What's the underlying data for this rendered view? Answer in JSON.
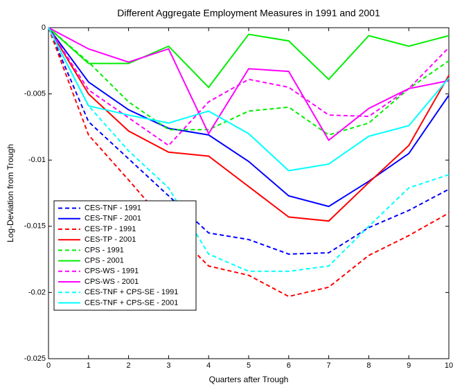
{
  "chart_data": {
    "type": "line",
    "title": "Different Aggregate Employment Measures in 1991 and 2001",
    "x_label": "Quarters after Trough",
    "y_label": "Log-Deviation from Trough",
    "x": [
      0,
      1,
      2,
      3,
      4,
      5,
      6,
      7,
      8,
      9,
      10
    ],
    "xlim": [
      0,
      10
    ],
    "xticks": [
      0,
      1,
      2,
      3,
      4,
      5,
      6,
      7,
      8,
      9,
      10
    ],
    "ylim": [
      -0.025,
      0
    ],
    "yticks": [
      0,
      -0.005,
      -0.01,
      -0.015,
      -0.02,
      -0.025
    ],
    "grid": false,
    "legend": "lower left",
    "series": [
      {
        "name": "CES-TNF - 1991",
        "color": "#0000ff",
        "dashed": true,
        "values": [
          0,
          -0.0071,
          -0.0099,
          -0.0127,
          -0.0155,
          -0.016,
          -0.0171,
          -0.017,
          -0.0151,
          -0.0138,
          -0.0122
        ]
      },
      {
        "name": "CES-TNF - 2001",
        "color": "#0000ff",
        "dashed": false,
        "values": [
          0,
          -0.0041,
          -0.0062,
          -0.0076,
          -0.0081,
          -0.0101,
          -0.0127,
          -0.0135,
          -0.0116,
          -0.0095,
          -0.0051
        ]
      },
      {
        "name": "CES-TP - 1991",
        "color": "#ff0000",
        "dashed": true,
        "values": [
          0,
          -0.0081,
          -0.0115,
          -0.015,
          -0.018,
          -0.0187,
          -0.0203,
          -0.0196,
          -0.0172,
          -0.0157,
          -0.014
        ]
      },
      {
        "name": "CES-TP - 2001",
        "color": "#ff0000",
        "dashed": false,
        "values": [
          0,
          -0.005,
          -0.0078,
          -0.0094,
          -0.0097,
          -0.012,
          -0.0143,
          -0.0146,
          -0.0117,
          -0.0089,
          -0.0036
        ]
      },
      {
        "name": "CPS - 1991",
        "color": "#00ee00",
        "dashed": true,
        "values": [
          0,
          -0.0026,
          -0.0056,
          -0.0077,
          -0.0077,
          -0.0063,
          -0.006,
          -0.0081,
          -0.0072,
          -0.0046,
          -0.0025
        ]
      },
      {
        "name": "CPS - 2001",
        "color": "#00ee00",
        "dashed": false,
        "values": [
          0,
          -0.0027,
          -0.0027,
          -0.0014,
          -0.0045,
          -0.0005,
          -0.001,
          -0.0039,
          -0.0006,
          -0.0014,
          -0.0006
        ]
      },
      {
        "name": "CPS-WS - 1991",
        "color": "#ff00ff",
        "dashed": true,
        "values": [
          0,
          -0.0047,
          -0.0068,
          -0.0089,
          -0.0056,
          -0.0039,
          -0.0045,
          -0.0066,
          -0.0067,
          -0.0046,
          -0.0015
        ]
      },
      {
        "name": "CPS-WS - 2001",
        "color": "#ff00ff",
        "dashed": false,
        "values": [
          0,
          -0.0016,
          -0.0026,
          -0.0016,
          -0.008,
          -0.0031,
          -0.0033,
          -0.0085,
          -0.0061,
          -0.0046,
          -0.004
        ]
      },
      {
        "name": "CES-TNF + CPS-SE - 1991",
        "color": "#00ffff",
        "dashed": true,
        "values": [
          0,
          -0.0059,
          -0.0093,
          -0.0121,
          -0.0171,
          -0.0184,
          -0.0184,
          -0.018,
          -0.015,
          -0.0121,
          -0.0111
        ]
      },
      {
        "name": "CES-TNF + CPS-SE - 2001",
        "color": "#00ffff",
        "dashed": false,
        "values": [
          0,
          -0.0059,
          -0.0066,
          -0.0072,
          -0.0063,
          -0.008,
          -0.0108,
          -0.0103,
          -0.0082,
          -0.0074,
          -0.0038
        ]
      }
    ]
  }
}
